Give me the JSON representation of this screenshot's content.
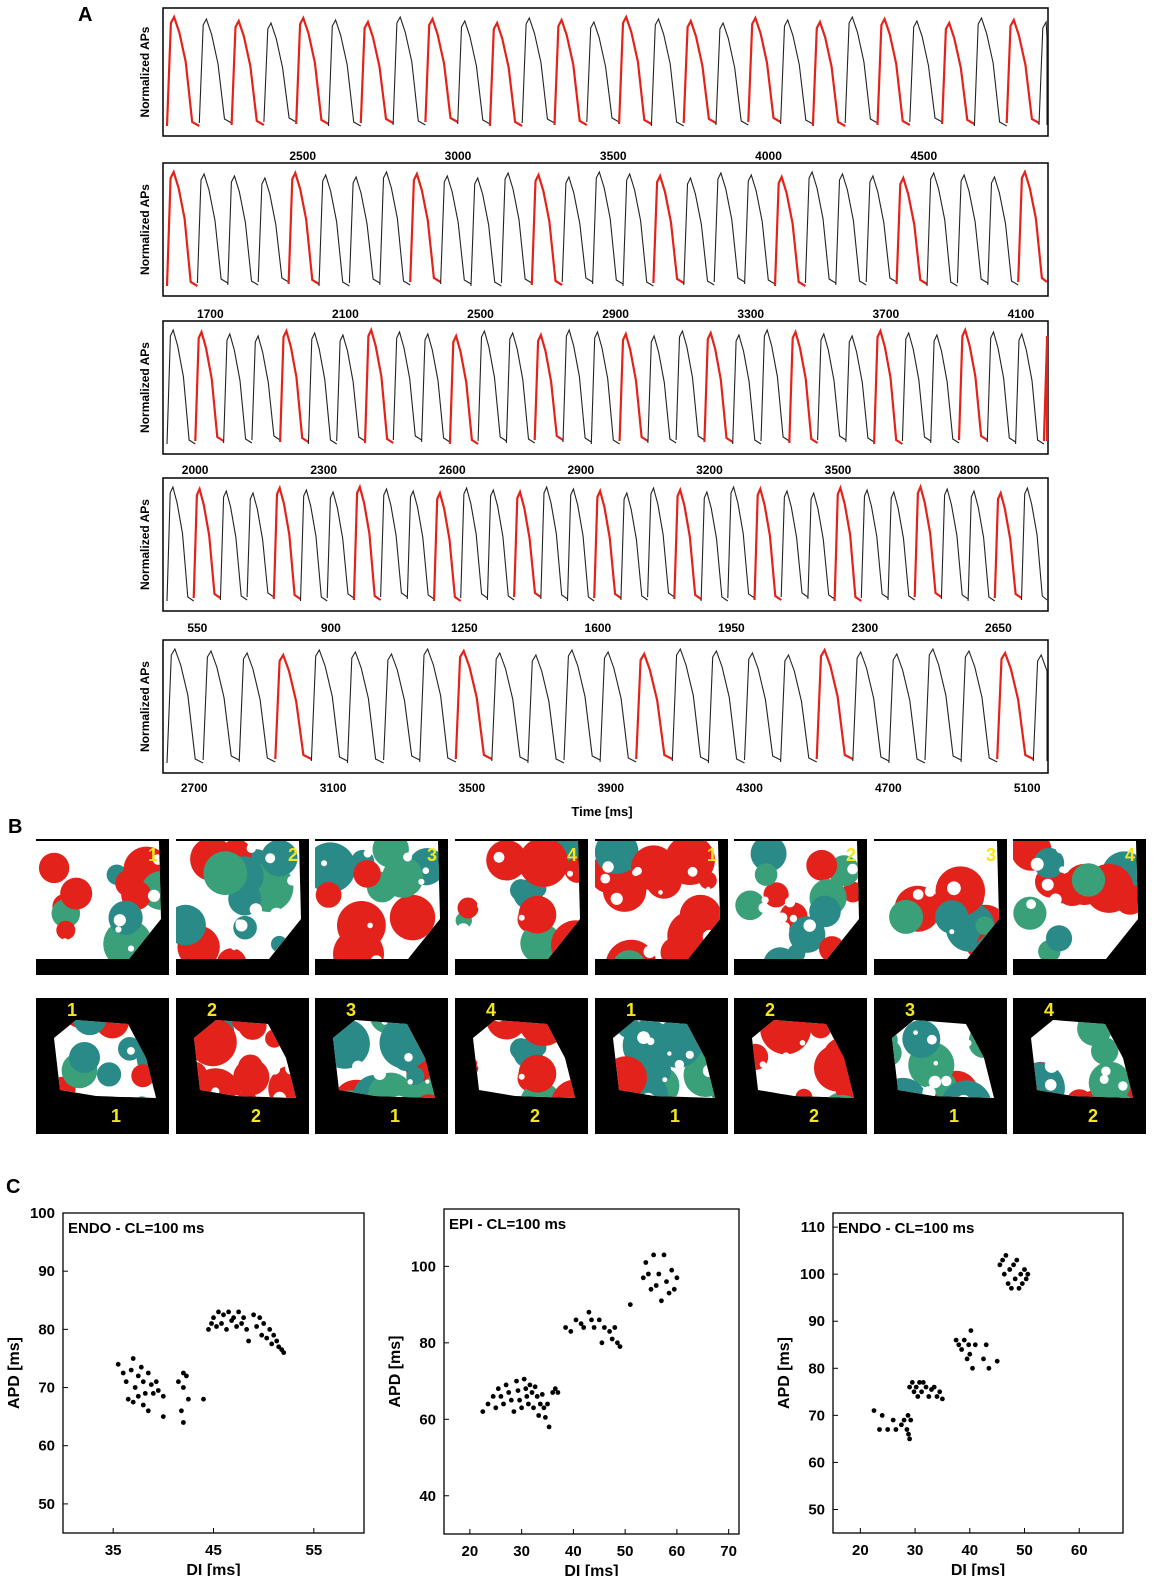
{
  "panel_labels": {
    "a": "A",
    "b": "B",
    "c": "C"
  },
  "traces": {
    "ylabel": "Normalized APs",
    "xlabel": "Time [ms]",
    "rows": [
      {
        "ticks": [
          "2500",
          "3000",
          "3500",
          "4000",
          "4500"
        ],
        "xlim": [
          2050,
          4900
        ],
        "period": 104,
        "pattern": "alt2"
      },
      {
        "ticks": [
          "1700",
          "2100",
          "2500",
          "2900",
          "3300",
          "3700",
          "4100"
        ],
        "xlim": [
          1560,
          4180
        ],
        "period": 90,
        "pattern": "every4"
      },
      {
        "ticks": [
          "2000",
          "2300",
          "2600",
          "2900",
          "3200",
          "3500",
          "3800"
        ],
        "xlim": [
          1925,
          3990
        ],
        "period": 66,
        "pattern": "every3"
      },
      {
        "ticks": [
          "550",
          "900",
          "1250",
          "1600",
          "1950",
          "2300",
          "2650"
        ],
        "xlim": [
          460,
          2780
        ],
        "period": 70,
        "pattern": "every3"
      },
      {
        "ticks": [
          "2700",
          "3100",
          "3500",
          "3900",
          "4300",
          "4700",
          "5100"
        ],
        "xlim": [
          2610,
          5160
        ],
        "period": 104,
        "pattern": "every5"
      }
    ]
  },
  "maps": {
    "row1_labels": [
      "1",
      "2",
      "3",
      "4",
      "1",
      "2",
      "3",
      "4"
    ],
    "row2_top_labels": [
      "1",
      "2",
      "3",
      "4",
      "1",
      "2",
      "3",
      "4"
    ],
    "row2_bottom_labels": [
      "1",
      "2",
      "1",
      "2",
      "1",
      "2",
      "1",
      "2"
    ],
    "colors": {
      "red": "#e3231b",
      "teal": "#2a8a88",
      "green": "#3aa07a",
      "white": "#ffffff",
      "bg": "#000000",
      "label": "#f5e61c"
    }
  },
  "chart_data": [
    {
      "type": "scatter",
      "title": "ENDO - CL=100 ms",
      "xlabel": "DI [ms]",
      "ylabel": "APD [ms]",
      "xlim": [
        30,
        60
      ],
      "ylim": [
        45,
        100
      ],
      "xticks": [
        "35",
        "45",
        "55"
      ],
      "yticks": [
        "50",
        "60",
        "70",
        "80",
        "90",
        "100"
      ],
      "points": [
        [
          35.5,
          74
        ],
        [
          36,
          72.5
        ],
        [
          36.3,
          71
        ],
        [
          36.8,
          73
        ],
        [
          37,
          75
        ],
        [
          37.2,
          70
        ],
        [
          37.5,
          72
        ],
        [
          37.8,
          73.5
        ],
        [
          38,
          71
        ],
        [
          38.2,
          69
        ],
        [
          38.5,
          72.5
        ],
        [
          38.8,
          70.5
        ],
        [
          39,
          69
        ],
        [
          39.3,
          71
        ],
        [
          36.5,
          68
        ],
        [
          37,
          67.5
        ],
        [
          37.5,
          68.5
        ],
        [
          38,
          67
        ],
        [
          38.5,
          66
        ],
        [
          39.5,
          69.5
        ],
        [
          40,
          68.5
        ],
        [
          40,
          65
        ],
        [
          41.5,
          71
        ],
        [
          42,
          72.5
        ],
        [
          42.3,
          72
        ],
        [
          42,
          70
        ],
        [
          42.5,
          68
        ],
        [
          41.8,
          66
        ],
        [
          42,
          64
        ],
        [
          44,
          68
        ],
        [
          44.5,
          80
        ],
        [
          44.8,
          81
        ],
        [
          45,
          82
        ],
        [
          45.3,
          80.5
        ],
        [
          45.5,
          83
        ],
        [
          45.8,
          81
        ],
        [
          46,
          82.5
        ],
        [
          46.3,
          80
        ],
        [
          46.5,
          83
        ],
        [
          46.8,
          81.5
        ],
        [
          47,
          82
        ],
        [
          47.3,
          80.5
        ],
        [
          47.5,
          83
        ],
        [
          47.8,
          81
        ],
        [
          48,
          82
        ],
        [
          48.3,
          80
        ],
        [
          48.5,
          78
        ],
        [
          49,
          82.5
        ],
        [
          49.3,
          80.5
        ],
        [
          49.6,
          82
        ],
        [
          49.8,
          79
        ],
        [
          50,
          81
        ],
        [
          50.3,
          78.5
        ],
        [
          50.6,
          80
        ],
        [
          50.8,
          77.5
        ],
        [
          51,
          79
        ],
        [
          51.3,
          78
        ],
        [
          51.5,
          77
        ],
        [
          51.8,
          76.5
        ],
        [
          52,
          76
        ]
      ]
    },
    {
      "type": "scatter",
      "title": "EPI - CL=100 ms",
      "xlabel": "DI [ms]",
      "ylabel": "APD [ms]",
      "xlim": [
        15,
        72
      ],
      "ylim": [
        30,
        115
      ],
      "xticks": [
        "20",
        "30",
        "40",
        "50",
        "60",
        "70"
      ],
      "yticks": [
        "40",
        "60",
        "80",
        "100"
      ],
      "points": [
        [
          22.5,
          62
        ],
        [
          23.5,
          64
        ],
        [
          24.5,
          66
        ],
        [
          25,
          63
        ],
        [
          25.5,
          68
        ],
        [
          26,
          66
        ],
        [
          26.5,
          64
        ],
        [
          27,
          69
        ],
        [
          27.5,
          67
        ],
        [
          28,
          65
        ],
        [
          28.5,
          62
        ],
        [
          29,
          70
        ],
        [
          29.3,
          67.5
        ],
        [
          29.6,
          65
        ],
        [
          30,
          63
        ],
        [
          30.5,
          70.5
        ],
        [
          30.8,
          68
        ],
        [
          31,
          66
        ],
        [
          31.3,
          64
        ],
        [
          31.6,
          69
        ],
        [
          32,
          67
        ],
        [
          32.3,
          63
        ],
        [
          32.6,
          68.5
        ],
        [
          33,
          66
        ],
        [
          33.3,
          61
        ],
        [
          33.6,
          64
        ],
        [
          34,
          66.5
        ],
        [
          34.3,
          63
        ],
        [
          34.6,
          60.5
        ],
        [
          35,
          64
        ],
        [
          35.3,
          58
        ],
        [
          36,
          67
        ],
        [
          36.5,
          68
        ],
        [
          37,
          67
        ],
        [
          38.5,
          84
        ],
        [
          39.5,
          83
        ],
        [
          40.5,
          86
        ],
        [
          41.5,
          85
        ],
        [
          42,
          84
        ],
        [
          43,
          88
        ],
        [
          43.5,
          86
        ],
        [
          44,
          84
        ],
        [
          45,
          86
        ],
        [
          45.5,
          80
        ],
        [
          46,
          84
        ],
        [
          47,
          83
        ],
        [
          47.5,
          81
        ],
        [
          48,
          84
        ],
        [
          48.5,
          80
        ],
        [
          49,
          79
        ],
        [
          51,
          90
        ],
        [
          53.5,
          97
        ],
        [
          54,
          101
        ],
        [
          54.5,
          98
        ],
        [
          55,
          94
        ],
        [
          55.5,
          103
        ],
        [
          56,
          95
        ],
        [
          56.5,
          98
        ],
        [
          57,
          91
        ],
        [
          57.5,
          103
        ],
        [
          58,
          96
        ],
        [
          58.5,
          93
        ],
        [
          59,
          99
        ],
        [
          59.5,
          94
        ],
        [
          60,
          97
        ]
      ]
    },
    {
      "type": "scatter",
      "title": "ENDO - CL=100 ms",
      "xlabel": "DI [ms]",
      "ylabel": "APD [ms]",
      "xlim": [
        15,
        68
      ],
      "ylim": [
        45,
        113
      ],
      "xticks": [
        "20",
        "30",
        "40",
        "50",
        "60"
      ],
      "yticks": [
        "50",
        "60",
        "70",
        "80",
        "90",
        "100",
        "110"
      ],
      "points": [
        [
          22.5,
          71
        ],
        [
          23.5,
          67
        ],
        [
          24,
          70
        ],
        [
          25,
          67
        ],
        [
          26,
          69
        ],
        [
          26.5,
          67
        ],
        [
          27.5,
          68
        ],
        [
          28,
          69
        ],
        [
          28.5,
          67
        ],
        [
          28.8,
          66
        ],
        [
          29,
          65
        ],
        [
          29.2,
          69
        ],
        [
          28.7,
          70
        ],
        [
          29,
          76
        ],
        [
          29.5,
          77
        ],
        [
          29.8,
          75
        ],
        [
          30.2,
          76
        ],
        [
          30.5,
          74
        ],
        [
          30.8,
          77
        ],
        [
          31.2,
          75
        ],
        [
          31.5,
          77
        ],
        [
          32,
          76
        ],
        [
          32.5,
          74
        ],
        [
          33,
          75.5
        ],
        [
          33.5,
          76
        ],
        [
          34,
          74
        ],
        [
          34.5,
          75
        ],
        [
          35,
          73.5
        ],
        [
          37.5,
          86
        ],
        [
          38,
          85
        ],
        [
          38.5,
          84
        ],
        [
          39,
          86
        ],
        [
          39.5,
          82
        ],
        [
          39.8,
          85
        ],
        [
          40,
          83
        ],
        [
          40.2,
          88
        ],
        [
          40.5,
          80
        ],
        [
          41,
          85
        ],
        [
          42.5,
          82
        ],
        [
          43,
          85
        ],
        [
          43.5,
          80
        ],
        [
          45,
          81.5
        ],
        [
          45.5,
          102
        ],
        [
          46,
          103
        ],
        [
          46.3,
          100
        ],
        [
          46.6,
          104
        ],
        [
          47,
          98
        ],
        [
          47.3,
          101
        ],
        [
          47.6,
          97
        ],
        [
          48,
          102
        ],
        [
          48.3,
          99
        ],
        [
          48.6,
          103
        ],
        [
          49,
          97
        ],
        [
          49.3,
          100
        ],
        [
          49.6,
          98
        ],
        [
          50,
          101
        ],
        [
          50.3,
          99
        ],
        [
          50.6,
          100
        ]
      ]
    }
  ]
}
